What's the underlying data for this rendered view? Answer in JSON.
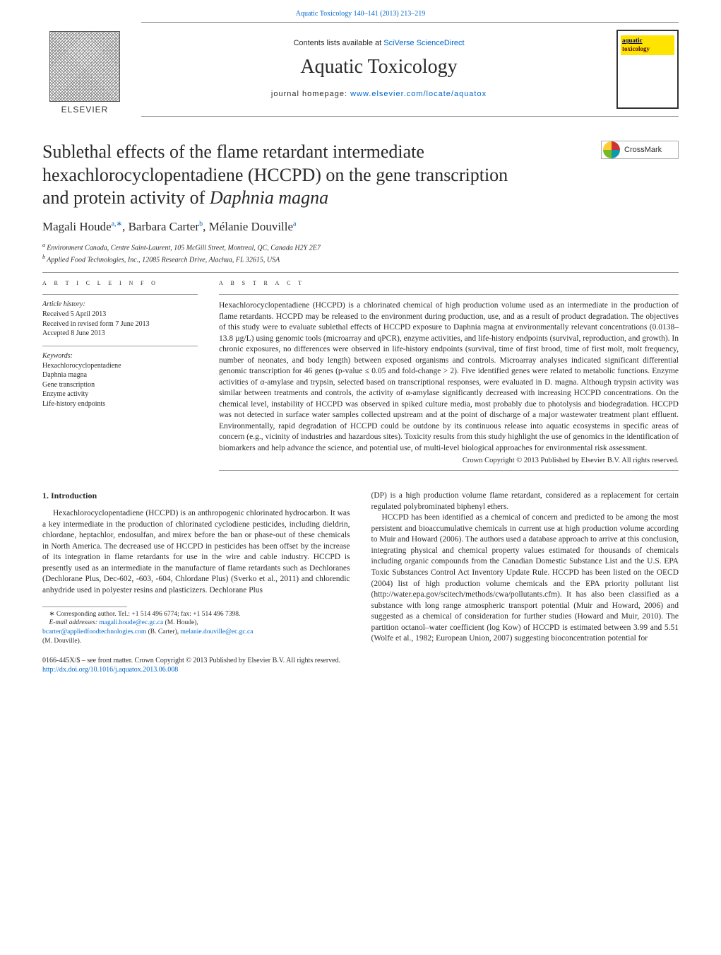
{
  "topLink": {
    "prefix": "",
    "link": "Aquatic Toxicology 140–141 (2013) 213–219"
  },
  "masthead": {
    "contentsPrefix": "Contents lists available at ",
    "contentsLink": "SciVerse ScienceDirect",
    "journal": "Aquatic Toxicology",
    "homepagePrefix": "journal homepage: ",
    "homepageLink": "www.elsevier.com/locate/aquatox",
    "publisher": "ELSEVIER",
    "coverWord1": "aquatic",
    "coverWord2": "toxicology"
  },
  "crossmark": "CrossMark",
  "title": {
    "line1": "Sublethal effects of the flame retardant intermediate",
    "line2": "hexachlorocyclopentadiene (HCCPD) on the gene transcription",
    "line3": "and protein activity of ",
    "speciesItalic": "Daphnia magna"
  },
  "authors": {
    "a1": "Magali Houde",
    "a1sup": "a,∗",
    "a2": "Barbara Carter",
    "a2sup": "b",
    "a3": "Mélanie Douville",
    "a3sup": "a"
  },
  "affiliations": {
    "a": "Environment Canada, Centre Saint-Laurent, 105 McGill Street, Montreal, QC, Canada H2Y 2E7",
    "b": "Applied Food Technologies, Inc., 12085 Research Drive, Alachua, FL 32615, USA",
    "asup": "a ",
    "bsup": "b "
  },
  "articleInfo": {
    "heading": "a r t i c l e   i n f o",
    "historyLabel": "Article history:",
    "history": "Received 5 April 2013\nReceived in revised form 7 June 2013\nAccepted 8 June 2013",
    "keywordsLabel": "Keywords:",
    "keywords": "Hexachlorocyclopentadiene\nDaphnia magna\nGene transcription\nEnzyme activity\nLife-history endpoints"
  },
  "abstract": {
    "heading": "a b s t r a c t",
    "text": "Hexachlorocyclopentadiene (HCCPD) is a chlorinated chemical of high production volume used as an intermediate in the production of flame retardants. HCCPD may be released to the environment during production, use, and as a result of product degradation. The objectives of this study were to evaluate sublethal effects of HCCPD exposure to Daphnia magna at environmentally relevant concentrations (0.0138–13.8 µg/L) using genomic tools (microarray and qPCR), enzyme activities, and life-history endpoints (survival, reproduction, and growth). In chronic exposures, no differences were observed in life-history endpoints (survival, time of first brood, time of first molt, molt frequency, number of neonates, and body length) between exposed organisms and controls. Microarray analyses indicated significant differential genomic transcription for 46 genes (p-value ≤ 0.05 and fold-change > 2). Five identified genes were related to metabolic functions. Enzyme activities of α-amylase and trypsin, selected based on transcriptional responses, were evaluated in D. magna. Although trypsin activity was similar between treatments and controls, the activity of α-amylase significantly decreased with increasing HCCPD concentrations. On the chemical level, instability of HCCPD was observed in spiked culture media, most probably due to photolysis and biodegradation. HCCPD was not detected in surface water samples collected upstream and at the point of discharge of a major wastewater treatment plant effluent. Environmentally, rapid degradation of HCCPD could be outdone by its continuous release into aquatic ecosystems in specific areas of concern (e.g., vicinity of industries and hazardous sites). Toxicity results from this study highlight the use of genomics in the identification of biomarkers and help advance the science, and potential use, of multi-level biological approaches for environmental risk assessment.",
    "copyright": "Crown Copyright © 2013 Published by Elsevier B.V. All rights reserved."
  },
  "body": {
    "sectionHead": "1.  Introduction",
    "leftP1": "Hexachlorocyclopentadiene (HCCPD) is an anthropogenic chlorinated hydrocarbon. It was a key intermediate in the production of chlorinated cyclodiene pesticides, including dieldrin, chlordane, heptachlor, endosulfan, and mirex before the ban or phase-out of these chemicals in North America. The decreased use of HCCPD in pesticides has been offset by the increase of its integration in flame retardants for use in the wire and cable industry. HCCPD is presently used as an intermediate in the manufacture of flame retardants such as Dechloranes (Dechlorane Plus, Dec-602, -603, -604, Chlordane Plus) (Sverko et al., 2011) and chlorendic anhydride used in polyester resins and plasticizers. Dechlorane Plus",
    "rightP0": "(DP) is a high production volume flame retardant, considered as a replacement for certain regulated polybrominated biphenyl ethers.",
    "rightP1": "HCCPD has been identified as a chemical of concern and predicted to be among the most persistent and bioaccumulative chemicals in current use at high production volume according to Muir and Howard (2006). The authors used a database approach to arrive at this conclusion, integrating physical and chemical property values estimated for thousands of chemicals including organic compounds from the Canadian Domestic Substance List and the U.S. EPA Toxic Substances Control Act Inventory Update Rule. HCCPD has been listed on the OECD (2004) list of high production volume chemicals and the EPA priority pollutant list (http://water.epa.gov/scitech/methods/cwa/pollutants.cfm). It has also been classified as a substance with long range atmospheric transport potential (Muir and Howard, 2006) and suggested as a chemical of consideration for further studies (Howard and Muir, 2010). The partition octanol–water coefficient (log Kow) of HCCPD is estimated between 3.99 and 5.51 (Wolfe et al., 1982; European Union, 2007) suggesting bioconcentration potential for"
  },
  "footnotes": {
    "corr": "∗ Corresponding author. Tel.: +1 514 496 6774; fax: +1 514 496 7398.",
    "emailLabel": "E-mail addresses: ",
    "e1": "magali.houde@ec.gc.ca",
    "e1who": " (M. Houde),",
    "e2": "bcarter@appliedfoodtechnologies.com",
    "e2who": " (B. Carter), ",
    "e3": "melanie.douville@ec.gc.ca",
    "e3who": " (M. Douville)."
  },
  "pageFooter": {
    "line1": "0166-445X/$ – see front matter. Crown Copyright © 2013 Published by Elsevier B.V. All rights reserved.",
    "doi": "http://dx.doi.org/10.1016/j.aquatox.2013.06.008"
  },
  "colors": {
    "link": "#0066cc",
    "text": "#2a2a2a",
    "rule": "#999999",
    "coverBand": "#ffe400"
  }
}
